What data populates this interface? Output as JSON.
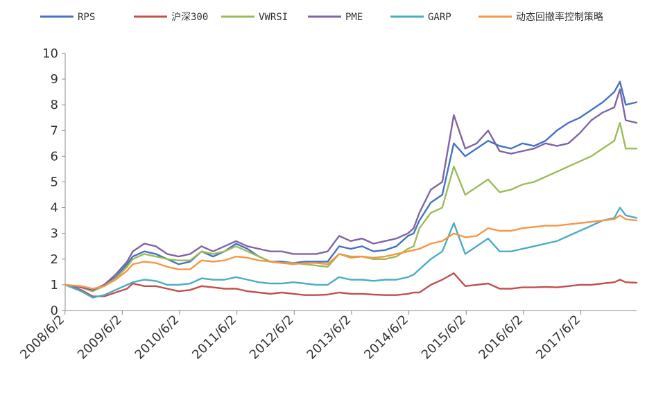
{
  "chart_data": {
    "type": "line",
    "title": "",
    "xlabel": "",
    "ylabel": "",
    "ylim": [
      0,
      10
    ],
    "yticks": [
      "0",
      "1",
      "2",
      "3",
      "4",
      "5",
      "6",
      "7",
      "8",
      "9",
      "10"
    ],
    "xticks": [
      "2008/6/2",
      "2009/6/2",
      "2010/6/2",
      "2011/6/2",
      "2012/6/2",
      "2013/6/2",
      "2014/6/2",
      "2015/6/2",
      "2016/6/2",
      "2017/6/2"
    ],
    "xrange": [
      2008.42,
      2018.39
    ],
    "grid": false,
    "legend_position": "top",
    "series": [
      {
        "name": "RPS",
        "color": "#4472c4",
        "x": [
          2008.42,
          2008.7,
          2008.9,
          2009.1,
          2009.3,
          2009.5,
          2009.6,
          2009.8,
          2010.0,
          2010.2,
          2010.4,
          2010.6,
          2010.8,
          2011.0,
          2011.2,
          2011.4,
          2011.6,
          2011.8,
          2012.0,
          2012.2,
          2012.4,
          2012.6,
          2012.8,
          2013.0,
          2013.2,
          2013.4,
          2013.6,
          2013.8,
          2014.0,
          2014.2,
          2014.4,
          2014.5,
          2014.6,
          2014.8,
          2015.0,
          2015.2,
          2015.4,
          2015.6,
          2015.8,
          2016.0,
          2016.2,
          2016.4,
          2016.6,
          2016.8,
          2017.0,
          2017.2,
          2017.4,
          2017.6,
          2017.8,
          2018.0,
          2018.1,
          2018.2,
          2018.39
        ],
        "values": [
          1.0,
          0.9,
          0.75,
          1.0,
          1.3,
          1.8,
          2.1,
          2.3,
          2.2,
          2.0,
          1.8,
          1.9,
          2.3,
          2.1,
          2.3,
          2.6,
          2.4,
          2.1,
          1.9,
          1.9,
          1.85,
          1.9,
          1.9,
          1.9,
          2.5,
          2.4,
          2.5,
          2.3,
          2.35,
          2.5,
          2.9,
          3.0,
          3.5,
          4.2,
          4.5,
          6.5,
          6.0,
          6.3,
          6.6,
          6.4,
          6.3,
          6.5,
          6.4,
          6.6,
          7.0,
          7.3,
          7.5,
          7.8,
          8.1,
          8.5,
          8.9,
          8.0,
          8.1
        ]
      },
      {
        "name": "沪深300",
        "color": "#c0504d",
        "x": [
          2008.42,
          2008.7,
          2008.9,
          2009.1,
          2009.3,
          2009.5,
          2009.6,
          2009.8,
          2010.0,
          2010.2,
          2010.4,
          2010.6,
          2010.8,
          2011.0,
          2011.2,
          2011.4,
          2011.6,
          2011.8,
          2012.0,
          2012.2,
          2012.4,
          2012.6,
          2012.8,
          2013.0,
          2013.2,
          2013.4,
          2013.6,
          2013.8,
          2014.0,
          2014.2,
          2014.4,
          2014.5,
          2014.6,
          2014.8,
          2015.0,
          2015.2,
          2015.4,
          2015.6,
          2015.8,
          2016.0,
          2016.2,
          2016.4,
          2016.6,
          2016.8,
          2017.0,
          2017.2,
          2017.4,
          2017.6,
          2017.8,
          2018.0,
          2018.1,
          2018.2,
          2018.39
        ],
        "values": [
          1.0,
          0.8,
          0.55,
          0.55,
          0.7,
          0.85,
          1.05,
          0.95,
          0.95,
          0.85,
          0.75,
          0.8,
          0.95,
          0.9,
          0.85,
          0.85,
          0.75,
          0.7,
          0.65,
          0.7,
          0.65,
          0.6,
          0.6,
          0.62,
          0.7,
          0.65,
          0.65,
          0.62,
          0.6,
          0.6,
          0.65,
          0.7,
          0.7,
          1.0,
          1.2,
          1.45,
          0.95,
          1.0,
          1.05,
          0.85,
          0.85,
          0.9,
          0.9,
          0.92,
          0.9,
          0.95,
          1.0,
          1.0,
          1.05,
          1.1,
          1.2,
          1.1,
          1.08
        ]
      },
      {
        "name": "VWRSI",
        "color": "#9bbb59",
        "x": [
          2008.42,
          2008.7,
          2008.9,
          2009.1,
          2009.3,
          2009.5,
          2009.6,
          2009.8,
          2010.0,
          2010.2,
          2010.4,
          2010.6,
          2010.8,
          2011.0,
          2011.2,
          2011.4,
          2011.6,
          2011.8,
          2012.0,
          2012.2,
          2012.4,
          2012.6,
          2012.8,
          2013.0,
          2013.2,
          2013.4,
          2013.6,
          2013.8,
          2014.0,
          2014.2,
          2014.4,
          2014.5,
          2014.6,
          2014.8,
          2015.0,
          2015.2,
          2015.4,
          2015.6,
          2015.8,
          2016.0,
          2016.2,
          2016.4,
          2016.6,
          2016.8,
          2017.0,
          2017.2,
          2017.4,
          2017.6,
          2017.8,
          2018.0,
          2018.1,
          2018.2,
          2018.39
        ],
        "values": [
          1.0,
          0.9,
          0.75,
          0.95,
          1.25,
          1.7,
          2.0,
          2.2,
          2.1,
          2.0,
          1.95,
          1.95,
          2.3,
          2.2,
          2.3,
          2.5,
          2.3,
          2.1,
          1.9,
          1.85,
          1.85,
          1.8,
          1.75,
          1.7,
          2.2,
          2.1,
          2.1,
          2.0,
          2.0,
          2.1,
          2.4,
          2.5,
          3.2,
          3.8,
          4.0,
          5.6,
          4.5,
          4.8,
          5.1,
          4.6,
          4.7,
          4.9,
          5.0,
          5.2,
          5.4,
          5.6,
          5.8,
          6.0,
          6.3,
          6.6,
          7.3,
          6.3,
          6.3
        ]
      },
      {
        "name": "PME",
        "color": "#8064a2",
        "x": [
          2008.42,
          2008.7,
          2008.9,
          2009.1,
          2009.3,
          2009.5,
          2009.6,
          2009.8,
          2010.0,
          2010.2,
          2010.4,
          2010.6,
          2010.8,
          2011.0,
          2011.2,
          2011.4,
          2011.6,
          2011.8,
          2012.0,
          2012.2,
          2012.4,
          2012.6,
          2012.8,
          2013.0,
          2013.2,
          2013.4,
          2013.6,
          2013.8,
          2014.0,
          2014.2,
          2014.4,
          2014.5,
          2014.6,
          2014.8,
          2015.0,
          2015.2,
          2015.4,
          2015.6,
          2015.8,
          2016.0,
          2016.2,
          2016.4,
          2016.6,
          2016.8,
          2017.0,
          2017.2,
          2017.4,
          2017.6,
          2017.8,
          2018.0,
          2018.1,
          2018.2,
          2018.39
        ],
        "values": [
          1.0,
          0.9,
          0.8,
          1.0,
          1.4,
          1.9,
          2.3,
          2.6,
          2.5,
          2.2,
          2.1,
          2.2,
          2.5,
          2.3,
          2.5,
          2.7,
          2.5,
          2.4,
          2.3,
          2.3,
          2.2,
          2.2,
          2.2,
          2.3,
          2.9,
          2.7,
          2.8,
          2.6,
          2.7,
          2.8,
          3.0,
          3.2,
          3.8,
          4.7,
          5.0,
          7.6,
          6.3,
          6.5,
          7.0,
          6.2,
          6.1,
          6.2,
          6.3,
          6.5,
          6.4,
          6.5,
          6.9,
          7.4,
          7.7,
          7.9,
          8.6,
          7.4,
          7.3
        ]
      },
      {
        "name": "GARP",
        "color": "#4bacc6",
        "x": [
          2008.42,
          2008.7,
          2008.9,
          2009.1,
          2009.3,
          2009.5,
          2009.6,
          2009.8,
          2010.0,
          2010.2,
          2010.4,
          2010.6,
          2010.8,
          2011.0,
          2011.2,
          2011.4,
          2011.6,
          2011.8,
          2012.0,
          2012.2,
          2012.4,
          2012.6,
          2012.8,
          2013.0,
          2013.2,
          2013.4,
          2013.6,
          2013.8,
          2014.0,
          2014.2,
          2014.4,
          2014.5,
          2014.6,
          2014.8,
          2015.0,
          2015.2,
          2015.4,
          2015.6,
          2015.8,
          2016.0,
          2016.2,
          2016.4,
          2016.6,
          2016.8,
          2017.0,
          2017.2,
          2017.4,
          2017.6,
          2017.8,
          2018.0,
          2018.1,
          2018.2,
          2018.39
        ],
        "values": [
          1.0,
          0.75,
          0.5,
          0.6,
          0.8,
          1.0,
          1.1,
          1.2,
          1.15,
          1.0,
          1.0,
          1.05,
          1.25,
          1.2,
          1.2,
          1.3,
          1.2,
          1.1,
          1.05,
          1.05,
          1.1,
          1.05,
          1.0,
          1.0,
          1.3,
          1.2,
          1.2,
          1.15,
          1.2,
          1.2,
          1.3,
          1.4,
          1.6,
          2.0,
          2.3,
          3.4,
          2.2,
          2.5,
          2.8,
          2.3,
          2.3,
          2.4,
          2.5,
          2.6,
          2.7,
          2.9,
          3.1,
          3.3,
          3.5,
          3.6,
          4.0,
          3.7,
          3.6
        ]
      },
      {
        "name": "动态回撤率控制策略",
        "color": "#f79646",
        "x": [
          2008.42,
          2008.7,
          2008.9,
          2009.1,
          2009.3,
          2009.5,
          2009.6,
          2009.8,
          2010.0,
          2010.2,
          2010.4,
          2010.6,
          2010.8,
          2011.0,
          2011.2,
          2011.4,
          2011.6,
          2011.8,
          2012.0,
          2012.2,
          2012.4,
          2012.6,
          2012.8,
          2013.0,
          2013.2,
          2013.4,
          2013.6,
          2013.8,
          2014.0,
          2014.2,
          2014.4,
          2014.5,
          2014.6,
          2014.8,
          2015.0,
          2015.2,
          2015.4,
          2015.6,
          2015.8,
          2016.0,
          2016.2,
          2016.4,
          2016.6,
          2016.8,
          2017.0,
          2017.2,
          2017.4,
          2017.6,
          2017.8,
          2018.0,
          2018.1,
          2018.2,
          2018.39
        ],
        "values": [
          1.0,
          0.95,
          0.85,
          0.95,
          1.2,
          1.55,
          1.8,
          1.9,
          1.85,
          1.7,
          1.6,
          1.6,
          1.95,
          1.9,
          1.95,
          2.1,
          2.05,
          1.95,
          1.9,
          1.85,
          1.8,
          1.85,
          1.85,
          1.8,
          2.2,
          2.05,
          2.1,
          2.05,
          2.1,
          2.2,
          2.3,
          2.35,
          2.4,
          2.6,
          2.7,
          3.0,
          2.85,
          2.9,
          3.2,
          3.1,
          3.1,
          3.2,
          3.25,
          3.3,
          3.3,
          3.35,
          3.4,
          3.45,
          3.5,
          3.55,
          3.7,
          3.55,
          3.5
        ]
      }
    ]
  }
}
